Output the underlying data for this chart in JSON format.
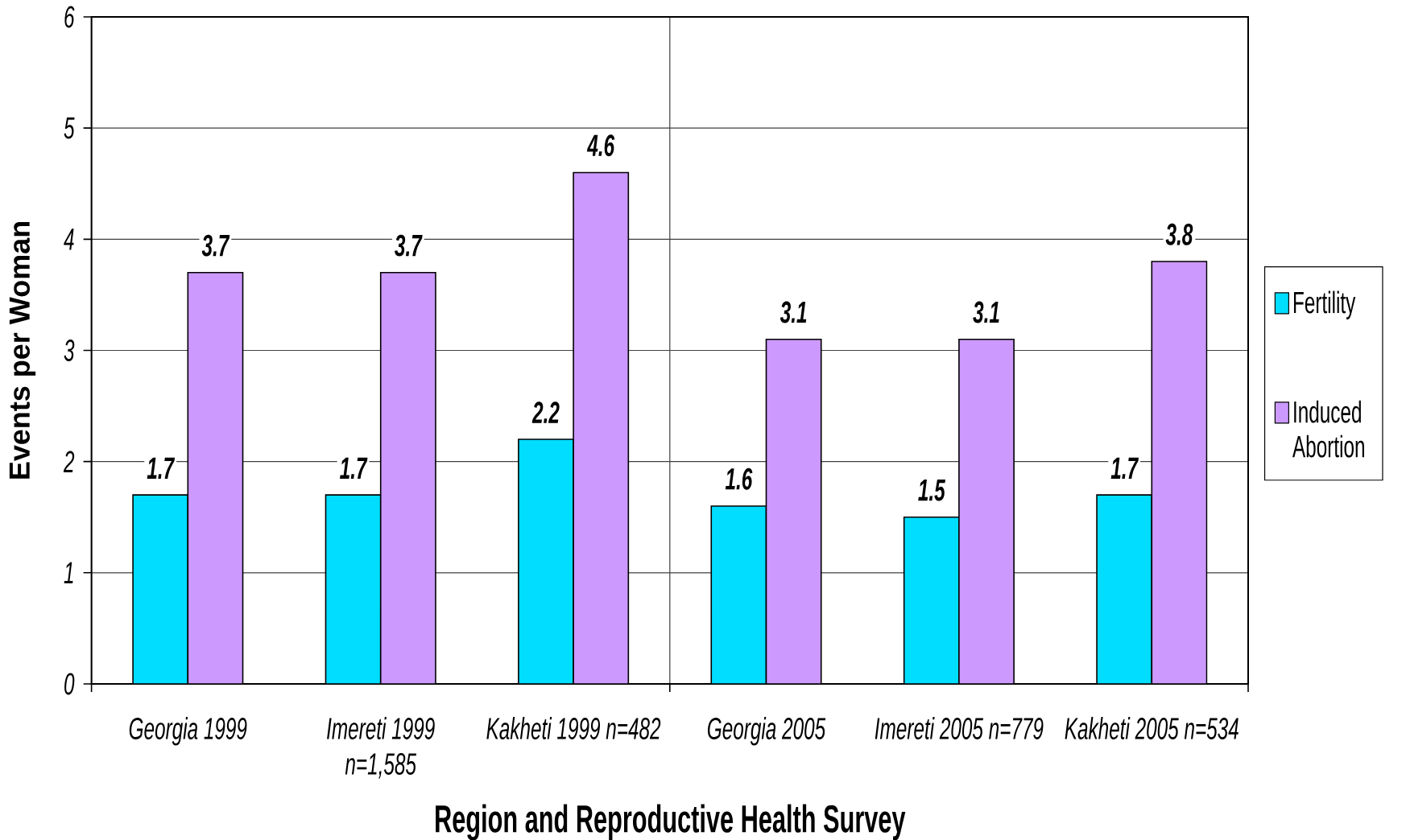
{
  "chart_data": {
    "type": "bar",
    "xlabel": "Region and Reproductive Health Survey",
    "ylabel": "Events per Woman",
    "categories": [
      "Georgia 1999",
      "Imereti 1999 n=1,585",
      "Kakheti 1999 n=482",
      "Georgia 2005",
      "Imereti 2005 n=779",
      "Kakheti 2005 n=534"
    ],
    "series": [
      {
        "name": "Fertility",
        "color": "#00ddff",
        "values": [
          1.7,
          1.7,
          2.2,
          1.6,
          1.5,
          1.7
        ]
      },
      {
        "name": "Induced Abortion",
        "color": "#cc99ff",
        "values": [
          3.7,
          3.7,
          4.6,
          3.1,
          3.1,
          3.8
        ]
      }
    ],
    "ylim": [
      0,
      6
    ],
    "yticks": [
      0,
      1,
      2,
      3,
      4,
      5,
      6
    ],
    "grid": true,
    "legend": "right",
    "data_labels": true
  }
}
